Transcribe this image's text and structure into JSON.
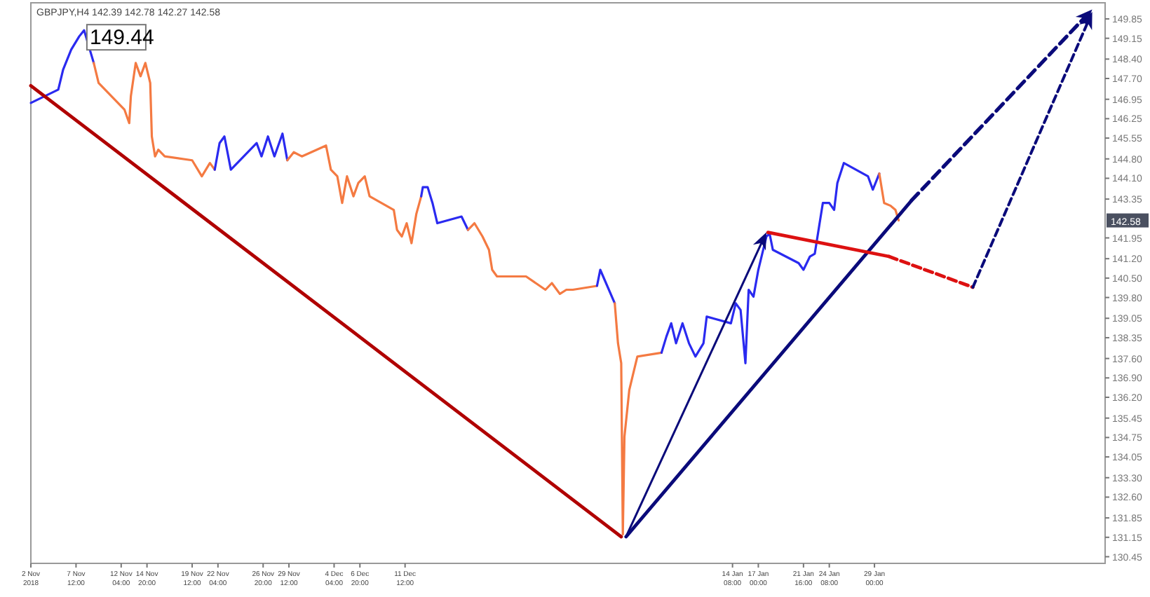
{
  "chart_data": {
    "type": "line",
    "title": "GBPJPY,H4 142.39 142.78 142.27 142.58",
    "xlim": [
      "2018-11-02T20:00",
      "2019-02-21T20:00"
    ],
    "ylim": [
      130.21,
      150.43
    ],
    "xticks": [
      {
        "value": "2018-11-02T20:00",
        "label": "2 Nov 2018"
      },
      {
        "value": "2018-11-07T12:00",
        "label": "7 Nov 12:00"
      },
      {
        "value": "2018-11-12T04:00",
        "label": "12 Nov 04:00"
      },
      {
        "value": "2018-11-14T20:00",
        "label": "14 Nov 20:00"
      },
      {
        "value": "2018-11-19T12:00",
        "label": "19 Nov 12:00"
      },
      {
        "value": "2018-11-22T04:00",
        "label": "22 Nov 04:00"
      },
      {
        "value": "2018-11-26T20:00",
        "label": "26 Nov 20:00"
      },
      {
        "value": "2018-11-29T12:00",
        "label": "29 Nov 12:00"
      },
      {
        "value": "2018-12-04T04:00",
        "label": "4 Dec 04:00"
      },
      {
        "value": "2018-12-06T20:00",
        "label": "6 Dec 20:00"
      },
      {
        "value": "2018-12-11T12:00",
        "label": "11 Dec 12:00"
      },
      {
        "value": "2019-01-14T08:00",
        "label": "14 Jan 08:00"
      },
      {
        "value": "2019-01-17T00:00",
        "label": "17 Jan 00:00"
      },
      {
        "value": "2019-01-21T16:00",
        "label": "21 Jan 16:00"
      },
      {
        "value": "2019-01-24T08:00",
        "label": "24 Jan 08:00"
      },
      {
        "value": "2019-01-29T00:00",
        "label": "29 Jan 00:00"
      }
    ],
    "yticks": [
      {
        "value": 149.85,
        "label": "149.85"
      },
      {
        "value": 149.15,
        "label": "149.15"
      },
      {
        "value": 148.4,
        "label": "148.40"
      },
      {
        "value": 147.7,
        "label": "147.70"
      },
      {
        "value": 146.95,
        "label": "146.95"
      },
      {
        "value": 146.25,
        "label": "146.25"
      },
      {
        "value": 145.55,
        "label": "145.55"
      },
      {
        "value": 144.8,
        "label": "144.80"
      },
      {
        "value": 144.1,
        "label": "144.10"
      },
      {
        "value": 143.35,
        "label": "143.35"
      },
      {
        "value": 141.95,
        "label": "141.95"
      },
      {
        "value": 141.2,
        "label": "141.20"
      },
      {
        "value": 140.5,
        "label": "140.50"
      },
      {
        "value": 139.8,
        "label": "139.80"
      },
      {
        "value": 139.05,
        "label": "139.05"
      },
      {
        "value": 138.35,
        "label": "138.35"
      },
      {
        "value": 137.6,
        "label": "137.60"
      },
      {
        "value": 136.9,
        "label": "136.90"
      },
      {
        "value": 136.2,
        "label": "136.20"
      },
      {
        "value": 135.45,
        "label": "135.45"
      },
      {
        "value": 134.75,
        "label": "134.75"
      },
      {
        "value": 134.05,
        "label": "134.05"
      },
      {
        "value": 133.3,
        "label": "133.30"
      },
      {
        "value": 132.6,
        "label": "132.60"
      },
      {
        "value": 131.85,
        "label": "131.85"
      },
      {
        "value": 131.15,
        "label": "131.15"
      },
      {
        "value": 130.45,
        "label": "130.45"
      }
    ],
    "grid": false,
    "annotations": [
      {
        "text": "149.44",
        "x": "2018-11-08T08:00",
        "y": 149.44
      },
      "142.58"
    ],
    "series": [
      {
        "color": "#2a2af0",
        "x": [
          "2018-11-02T20:00",
          "2018-11-05T16:00",
          "2018-11-06T04:00",
          "2018-11-07T00:00",
          "2018-11-07T20:00",
          "2018-11-08T08:00",
          "2018-11-09T08:00"
        ],
        "values": [
          146.82,
          147.3,
          148.02,
          148.74,
          149.22,
          149.44,
          148.26
        ]
      },
      {
        "color": "#f47a42",
        "x": [
          "2018-11-09T08:00",
          "2018-11-09T20:00",
          "2018-11-12T12:00",
          "2018-11-13T00:00",
          "2018-11-13T04:00",
          "2018-11-13T16:00",
          "2018-11-14T04:00",
          "2018-11-14T16:00",
          "2018-11-15T04:00",
          "2018-11-15T08:00",
          "2018-11-15T16:00",
          "2018-11-16T00:00",
          "2018-11-16T16:00",
          "2018-11-19T12:00",
          "2018-11-20T12:00",
          "2018-11-21T08:00",
          "2018-11-21T20:00"
        ],
        "values": [
          148.26,
          147.54,
          146.58,
          146.09,
          147.06,
          148.26,
          147.78,
          148.26,
          147.54,
          145.61,
          144.89,
          145.13,
          144.89,
          144.75,
          144.17,
          144.65,
          144.41
        ]
      },
      {
        "color": "#2a2af0",
        "x": [
          "2018-11-21T20:00",
          "2018-11-22T08:00",
          "2018-11-22T20:00",
          "2018-11-23T12:00",
          "2018-11-26T04:00",
          "2018-11-26T16:00",
          "2018-11-27T08:00",
          "2018-11-28T00:00",
          "2018-11-28T20:00",
          "2018-11-29T08:00"
        ],
        "values": [
          144.41,
          145.37,
          145.61,
          144.41,
          145.37,
          144.89,
          145.61,
          144.89,
          145.71,
          144.75
        ]
      },
      {
        "color": "#f47a42",
        "x": [
          "2018-11-29T08:00",
          "2018-11-30T00:00",
          "2018-11-30T20:00",
          "2018-12-03T08:00",
          "2018-12-03T20:00",
          "2018-12-04T12:00",
          "2018-12-05T00:00",
          "2018-12-05T12:00",
          "2018-12-06T04:00",
          "2018-12-06T16:00",
          "2018-12-07T08:00",
          "2018-12-07T20:00",
          "2018-12-10T08:00",
          "2018-12-10T16:00",
          "2018-12-11T04:00",
          "2018-12-11T16:00",
          "2018-12-12T04:00",
          "2018-12-12T16:00",
          "2018-12-13T04:00"
        ],
        "values": [
          144.75,
          145.04,
          144.89,
          145.28,
          144.41,
          144.17,
          143.21,
          144.17,
          143.45,
          143.93,
          144.17,
          143.45,
          142.96,
          142.24,
          142.0,
          142.48,
          141.76,
          142.82,
          143.45
        ]
      },
      {
        "color": "#2a2af0",
        "x": [
          "2018-12-13T04:00",
          "2018-12-13T08:00",
          "2018-12-13T20:00",
          "2018-12-14T08:00",
          "2018-12-14T20:00",
          "2018-12-17T08:00",
          "2018-12-18T00:00"
        ],
        "values": [
          143.45,
          143.78,
          143.78,
          143.21,
          142.48,
          142.72,
          142.24
        ]
      },
      {
        "color": "#f47a42",
        "x": [
          "2018-12-18T00:00",
          "2018-12-18T16:00",
          "2018-12-19T12:00",
          "2018-12-20T04:00",
          "2018-12-20T12:00",
          "2018-12-21T00:00",
          "2018-12-24T00:00",
          "2018-12-26T00:00",
          "2018-12-26T16:00",
          "2018-12-27T12:00",
          "2018-12-28T04:00",
          "2018-12-28T20:00",
          "2018-12-31T08:00"
        ],
        "values": [
          142.24,
          142.48,
          142.0,
          141.52,
          140.8,
          140.56,
          140.56,
          140.08,
          140.32,
          139.93,
          140.08,
          140.08,
          140.22
        ]
      },
      {
        "color": "#2a2af0",
        "x": [
          "2018-12-31T08:00",
          "2018-12-31T16:00",
          "2019-01-02T04:00"
        ],
        "values": [
          140.22,
          140.8,
          139.59
        ]
      },
      {
        "color": "#f47a42",
        "x": [
          "2019-01-02T04:00",
          "2019-01-02T12:00",
          "2019-01-02T20:00",
          "2019-01-03T00:00",
          "2019-01-03T04:00",
          "2019-01-03T16:00",
          "2019-01-04T00:00",
          "2019-01-04T12:00",
          "2019-01-07T00:00"
        ],
        "values": [
          139.59,
          138.15,
          137.43,
          131.26,
          134.78,
          136.46,
          136.95,
          137.67,
          137.81
        ]
      },
      {
        "color": "#2a2af0",
        "x": [
          "2019-01-07T00:00",
          "2019-01-07T12:00",
          "2019-01-08T00:00",
          "2019-01-08T12:00",
          "2019-01-09T04:00",
          "2019-01-09T20:00",
          "2019-01-10T12:00",
          "2019-01-11T08:00",
          "2019-01-11T16:00",
          "2019-01-14T04:00",
          "2019-01-14T16:00",
          "2019-01-15T04:00",
          "2019-01-15T16:00",
          "2019-01-16T00:00",
          "2019-01-16T12:00",
          "2019-01-17T00:00",
          "2019-01-17T20:00",
          "2019-01-18T04:00",
          "2019-01-18T12:00",
          "2019-01-21T04:00",
          "2019-01-21T16:00",
          "2019-01-22T08:00",
          "2019-01-22T20:00",
          "2019-01-23T08:00",
          "2019-01-23T16:00",
          "2019-01-24T08:00",
          "2019-01-24T20:00",
          "2019-01-25T04:00",
          "2019-01-25T20:00",
          "2019-01-28T08:00",
          "2019-01-28T20:00",
          "2019-01-29T12:00"
        ],
        "values": [
          137.81,
          138.39,
          138.87,
          138.15,
          138.87,
          138.15,
          137.67,
          138.15,
          139.11,
          138.87,
          139.59,
          139.35,
          137.43,
          140.08,
          139.83,
          140.8,
          142.0,
          142.1,
          141.52,
          141.04,
          140.8,
          141.28,
          141.38,
          142.48,
          143.21,
          143.21,
          142.96,
          143.93,
          144.65,
          144.17,
          143.69,
          144.27
        ]
      },
      {
        "color": "#f47a42",
        "x": [
          "2019-01-29T12:00",
          "2019-01-30T00:00",
          "2019-01-30T16:00",
          "2019-01-31T04:00",
          "2019-01-31T12:00"
        ],
        "values": [
          144.27,
          143.21,
          143.11,
          142.96,
          142.58
        ]
      },
      {
        "color": "#b00000",
        "x": [
          "2018-11-02T20:00",
          "2019-01-02T20:00"
        ],
        "values": [
          147.44,
          131.17
        ]
      },
      {
        "color": "#0a0a7a",
        "x": [
          "2019-01-03T08:00",
          "2019-02-01T20:00"
        ],
        "values": [
          131.17,
          143.3
        ]
      },
      {
        "color": "#dd1111",
        "x": [
          "2019-01-18T00:00",
          "2019-01-30T12:00"
        ],
        "values": [
          142.15,
          141.28
        ]
      },
      {
        "color": "#dd1111",
        "line_style": "dashed",
        "x": [
          "2019-01-30T12:00",
          "2019-02-08T04:00"
        ],
        "values": [
          141.28,
          140.17
        ]
      }
    ]
  }
}
